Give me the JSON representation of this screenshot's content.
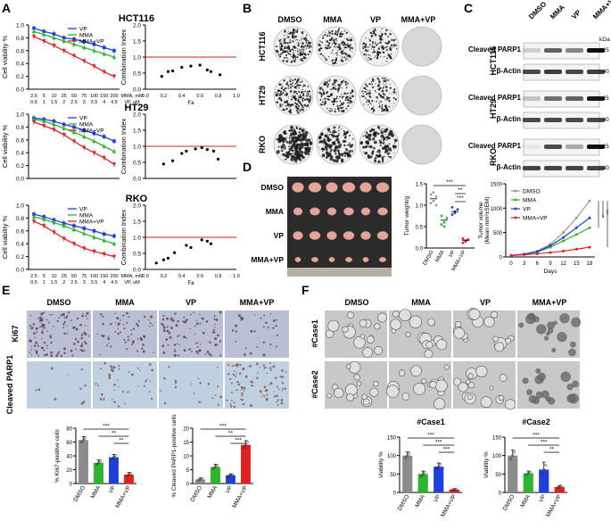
{
  "panels": {
    "A": {
      "letter": "A"
    },
    "B": {
      "letter": "B",
      "columns": [
        "DMSO",
        "MMA",
        "VP",
        "MMA+VP"
      ],
      "rows": [
        "HCT116",
        "HT29",
        "RKO"
      ]
    },
    "C": {
      "letter": "C",
      "columns": [
        "DMSO",
        "MMA",
        "VP",
        "MMA+VP"
      ],
      "kda_label": "kDa",
      "groups": [
        {
          "cell": "HCT116",
          "bands": [
            {
              "label": "Cleaved PARP1",
              "marker": "-25"
            },
            {
              "label": "β-Actin",
              "marker": "-40"
            }
          ]
        },
        {
          "cell": "HT29",
          "bands": [
            {
              "label": "Cleaved PARP1",
              "marker": "-25"
            },
            {
              "label": "β-Actin",
              "marker": "-40"
            }
          ]
        },
        {
          "cell": "RKO",
          "bands": [
            {
              "label": "Cleaved PARP1",
              "marker": "-25"
            },
            {
              "label": "β-Actin",
              "marker": "-40"
            }
          ]
        }
      ]
    },
    "D": {
      "letter": "D",
      "rows": [
        "DMSO",
        "MMA",
        "VP",
        "MMA+VP"
      ]
    },
    "E": {
      "letter": "E",
      "columns": [
        "DMSO",
        "MMA",
        "VP",
        "MMA+VP"
      ],
      "rows": [
        "Ki67",
        "Cleaved PARP1"
      ]
    },
    "F": {
      "letter": "F",
      "columns": [
        "DMSO",
        "MMA",
        "VP",
        "MMA+VP"
      ],
      "rows": [
        "#Case1",
        "#Case2"
      ]
    }
  },
  "chart_data": [
    {
      "id": "A-HCT116-viability",
      "type": "line",
      "title": "HCT116",
      "ylabel": "Cell viability %",
      "ylim": [
        0,
        1.0
      ],
      "yticks": [
        "0.0",
        "0.2",
        "0.4",
        "0.6",
        "0.8",
        "1.0"
      ],
      "x_rows": {
        "MMA, mM": [
          "2.5",
          "5",
          "10",
          "25",
          "50",
          "75",
          "100",
          "150",
          "200"
        ],
        "VP, uM": [
          "0.5",
          "1",
          "1.5",
          "2",
          "2.5",
          "3",
          "3.5",
          "4",
          "4.5"
        ]
      },
      "x_row_labels": [
        "MMA, mM",
        "VP, uM"
      ],
      "series": [
        {
          "name": "VP",
          "color": "#1f3fd8",
          "values": [
            0.95,
            0.9,
            0.86,
            0.8,
            0.78,
            0.74,
            0.7,
            0.65,
            0.6
          ]
        },
        {
          "name": "MMA",
          "color": "#2db52d",
          "values": [
            0.9,
            0.85,
            0.8,
            0.75,
            0.7,
            0.65,
            0.6,
            0.55,
            0.5
          ]
        },
        {
          "name": "MMA+VP",
          "color": "#e02020",
          "values": [
            0.82,
            0.75,
            0.68,
            0.6,
            0.52,
            0.44,
            0.36,
            0.27,
            0.2
          ]
        }
      ]
    },
    {
      "id": "A-HCT116-ci",
      "type": "scatter",
      "ylabel": "Combination Index",
      "xlabel": "Fa",
      "ylim": [
        0,
        2.0
      ],
      "xlim": [
        0,
        1.0
      ],
      "yticks": [
        "0.0",
        "0.5",
        "1.0",
        "1.5",
        "2.0"
      ],
      "xticks": [
        "0.0",
        "0.2",
        "0.4",
        "0.6",
        "0.8",
        "1.0"
      ],
      "reference_line": 1.0,
      "points": [
        [
          0.18,
          0.4
        ],
        [
          0.25,
          0.55
        ],
        [
          0.3,
          0.57
        ],
        [
          0.4,
          0.68
        ],
        [
          0.5,
          0.72
        ],
        [
          0.6,
          0.75
        ],
        [
          0.68,
          0.6
        ],
        [
          0.72,
          0.55
        ],
        [
          0.82,
          0.45
        ]
      ]
    },
    {
      "id": "A-HT29-viability",
      "type": "line",
      "title": "HT29",
      "ylabel": "Cell viability %",
      "ylim": [
        0,
        1.0
      ],
      "yticks": [
        "0.0",
        "0.2",
        "0.4",
        "0.6",
        "0.8",
        "1.0"
      ],
      "series": [
        {
          "name": "VP",
          "color": "#1f3fd8",
          "values": [
            0.94,
            0.92,
            0.89,
            0.84,
            0.8,
            0.75,
            0.7,
            0.65,
            0.58
          ]
        },
        {
          "name": "MMA",
          "color": "#2db52d",
          "values": [
            0.92,
            0.89,
            0.84,
            0.78,
            0.72,
            0.65,
            0.58,
            0.5,
            0.42
          ]
        },
        {
          "name": "MMA+VP",
          "color": "#e02020",
          "values": [
            0.88,
            0.82,
            0.76,
            0.68,
            0.58,
            0.48,
            0.4,
            0.32,
            0.22
          ]
        }
      ]
    },
    {
      "id": "A-HT29-ci",
      "type": "scatter",
      "ylabel": "Combination Index",
      "ylim": [
        0,
        2.0
      ],
      "xlim": [
        0,
        1.0
      ],
      "yticks": [
        "0.0",
        "0.5",
        "1.0",
        "1.5",
        "2.0"
      ],
      "xticks": [
        "0.0",
        "0.2",
        "0.4",
        "0.6",
        "0.8",
        "1.0"
      ],
      "reference_line": 1.0,
      "points": [
        [
          0.2,
          0.45
        ],
        [
          0.3,
          0.55
        ],
        [
          0.4,
          0.78
        ],
        [
          0.45,
          0.85
        ],
        [
          0.55,
          0.92
        ],
        [
          0.62,
          0.96
        ],
        [
          0.68,
          0.9
        ],
        [
          0.75,
          0.85
        ],
        [
          0.8,
          0.6
        ]
      ]
    },
    {
      "id": "A-RKO-viability",
      "type": "line",
      "title": "RKO",
      "ylabel": "Cell viability %",
      "ylim": [
        0,
        1.0
      ],
      "yticks": [
        "0.0",
        "0.2",
        "0.4",
        "0.6",
        "0.8",
        "1.0"
      ],
      "x_rows": {
        "MMA, mM": [
          "2.5",
          "5",
          "10",
          "25",
          "50",
          "75",
          "100",
          "150",
          "200"
        ],
        "VP, uM": [
          "0.5",
          "1",
          "1.5",
          "2",
          "2.5",
          "3",
          "3.5",
          "4",
          "4.5"
        ]
      },
      "x_row_labels": [
        "MMA, mM",
        "VP, uM"
      ],
      "series": [
        {
          "name": "VP",
          "color": "#1f3fd8",
          "values": [
            0.86,
            0.82,
            0.77,
            0.72,
            0.68,
            0.64,
            0.6,
            0.55,
            0.52
          ]
        },
        {
          "name": "MMA",
          "color": "#2db52d",
          "values": [
            0.82,
            0.78,
            0.73,
            0.68,
            0.62,
            0.56,
            0.5,
            0.45,
            0.4
          ]
        },
        {
          "name": "MMA+VP",
          "color": "#e02020",
          "values": [
            0.75,
            0.68,
            0.58,
            0.48,
            0.4,
            0.33,
            0.28,
            0.24,
            0.2
          ]
        }
      ]
    },
    {
      "id": "A-RKO-ci",
      "type": "scatter",
      "ylabel": "Combination Index",
      "xlabel": "Fa",
      "ylim": [
        0,
        2.0
      ],
      "xlim": [
        0,
        1.0
      ],
      "yticks": [
        "0.0",
        "0.5",
        "1.0",
        "1.5",
        "2.0"
      ],
      "xticks": [
        "0.0",
        "0.2",
        "0.4",
        "0.6",
        "0.8",
        "1.0"
      ],
      "reference_line": 1.0,
      "points": [
        [
          0.12,
          0.2
        ],
        [
          0.2,
          0.3
        ],
        [
          0.25,
          0.35
        ],
        [
          0.32,
          0.52
        ],
        [
          0.45,
          0.75
        ],
        [
          0.5,
          0.68
        ],
        [
          0.62,
          0.92
        ],
        [
          0.68,
          0.88
        ],
        [
          0.72,
          0.8
        ]
      ]
    },
    {
      "id": "D-tumor-weight",
      "type": "scatter",
      "ylabel": "Tumor weight/g",
      "ylim": [
        0,
        1.5
      ],
      "yticks": [
        "0.0",
        "0.5",
        "1.0",
        "1.5"
      ],
      "categories": [
        "DMSO",
        "MMA",
        "VP",
        "MMA+VP"
      ],
      "colors": [
        "#9a9a9a",
        "#2db52d",
        "#1f3fd8",
        "#e02020"
      ],
      "means": [
        1.15,
        0.65,
        0.85,
        0.18
      ],
      "points": [
        [
          1.05,
          1.1,
          1.2,
          1.25,
          1.3,
          1.0
        ],
        [
          0.55,
          0.6,
          0.7,
          0.75,
          0.5
        ],
        [
          0.78,
          0.82,
          0.9,
          0.95,
          0.85
        ],
        [
          0.12,
          0.15,
          0.2,
          0.22,
          0.18
        ]
      ],
      "significance": [
        "***",
        "**",
        "***"
      ]
    },
    {
      "id": "D-tumor-volume",
      "type": "line",
      "ylabel": "Tumor volume (Mean mm^3±SEM)",
      "ylabel_lines": [
        "Tumor volume",
        "(Mean mm³±SEM)"
      ],
      "xlabel": "Days",
      "ylim": [
        0,
        1500
      ],
      "yticks": [
        "0",
        "500",
        "1000",
        "1500"
      ],
      "xticks": [
        "0",
        "3",
        "6",
        "9",
        "12",
        "15",
        "18"
      ],
      "x": [
        0,
        3,
        6,
        9,
        12,
        15,
        18
      ],
      "series": [
        {
          "name": "DMSO",
          "color": "#9a9a9a",
          "values": [
            30,
            60,
            120,
            260,
            500,
            800,
            1150
          ]
        },
        {
          "name": "MMA",
          "color": "#2db52d",
          "values": [
            30,
            55,
            100,
            200,
            330,
            460,
            600
          ]
        },
        {
          "name": "VP",
          "color": "#1f3fd8",
          "values": [
            30,
            58,
            110,
            230,
            400,
            600,
            800
          ]
        },
        {
          "name": "MMA+VP",
          "color": "#e02020",
          "values": [
            30,
            45,
            65,
            90,
            120,
            160,
            200
          ]
        }
      ],
      "significance": [
        "**",
        "***",
        "***"
      ]
    },
    {
      "id": "E-ki67",
      "type": "bar",
      "ylabel": "% Ki67-positive cells",
      "ylim": [
        0,
        80
      ],
      "yticks": [
        "0",
        "20",
        "40",
        "60",
        "80"
      ],
      "categories": [
        "DMSO",
        "MMA",
        "VP",
        "MMA+VP"
      ],
      "colors": [
        "#8c8c8c",
        "#2db52d",
        "#1f3fd8",
        "#e02020"
      ],
      "values": [
        63,
        30,
        38,
        13
      ],
      "errors": [
        5,
        4,
        4,
        3
      ],
      "significance": [
        "***",
        "**",
        "**"
      ]
    },
    {
      "id": "E-cparp",
      "type": "bar",
      "ylabel": "% Cleaved PARP1-positive cells",
      "ylim": [
        0,
        20
      ],
      "yticks": [
        "0",
        "5",
        "10",
        "15",
        "20"
      ],
      "categories": [
        "DMSO",
        "MMA",
        "VP",
        "MMA+VP"
      ],
      "colors": [
        "#8c8c8c",
        "#2db52d",
        "#1f3fd8",
        "#e02020"
      ],
      "values": [
        1.5,
        6,
        3,
        14
      ],
      "errors": [
        0.5,
        1,
        0.5,
        1.5
      ],
      "significance": [
        "***",
        "**",
        "***"
      ]
    },
    {
      "id": "F-case1",
      "type": "bar",
      "title": "#Case1",
      "ylabel": "Viability %",
      "ylim": [
        0,
        150
      ],
      "yticks": [
        "0",
        "50",
        "100",
        "150"
      ],
      "categories": [
        "DMSO",
        "MMA",
        "VP",
        "MMA+VP"
      ],
      "colors": [
        "#8c8c8c",
        "#2db52d",
        "#1f3fd8",
        "#e02020"
      ],
      "values": [
        100,
        50,
        70,
        8
      ],
      "errors": [
        10,
        8,
        10,
        2
      ],
      "significance": [
        "***",
        "***",
        "***"
      ]
    },
    {
      "id": "F-case2",
      "type": "bar",
      "title": "#Case2",
      "ylabel": "Viability %",
      "ylim": [
        0,
        150
      ],
      "yticks": [
        "0",
        "50",
        "100",
        "150"
      ],
      "categories": [
        "DMSO",
        "MMA",
        "VP",
        "MMA+VP"
      ],
      "colors": [
        "#8c8c8c",
        "#2db52d",
        "#1f3fd8",
        "#e02020"
      ],
      "values": [
        100,
        52,
        62,
        15
      ],
      "errors": [
        15,
        6,
        20,
        4
      ],
      "significance": [
        "***",
        "***",
        "**"
      ]
    }
  ]
}
